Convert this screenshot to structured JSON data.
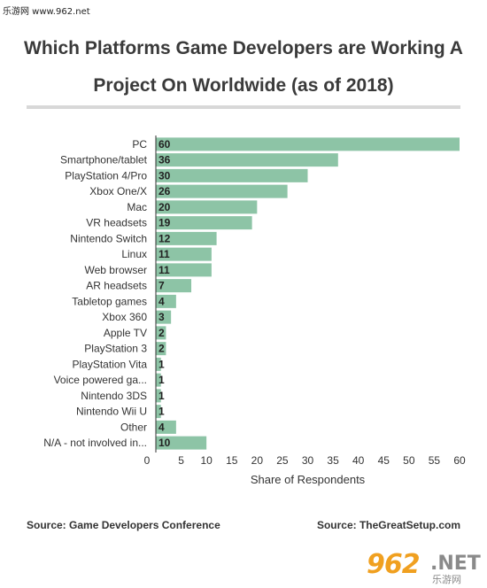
{
  "watermark": "乐游网 www.962.net",
  "title_line1": "Which Platforms Game Developers are Working A",
  "title_line2": "Project On Worldwide (as of 2018)",
  "footer": {
    "left": "Source: Game Developers Conference",
    "right": "Source: TheGreatSetup.com"
  },
  "logo": {
    "main": "962",
    "suffix": ".NET",
    "sub": "乐游网"
  },
  "colors": {
    "bar": "#8dc4a6",
    "axis": "#333333",
    "text": "#333333"
  },
  "chart_data": {
    "type": "bar",
    "orientation": "horizontal",
    "categories": [
      "PC",
      "Smartphone/tablet",
      "PlayStation 4/Pro",
      "Xbox One/X",
      "Mac",
      "VR headsets",
      "Nintendo Switch",
      "Linux",
      "Web browser",
      "AR headsets",
      "Tabletop games",
      "Xbox 360",
      "Apple TV",
      "PlayStation 3",
      "PlayStation Vita",
      "Voice powered ga...",
      "Nintendo 3DS",
      "Nintendo Wii U",
      "Other",
      "N/A - not involved in..."
    ],
    "values": [
      60,
      36,
      30,
      26,
      20,
      19,
      12,
      11,
      11,
      7,
      4,
      3,
      2,
      2,
      1,
      1,
      1,
      1,
      4,
      10
    ],
    "xlabel": "Share of Respondents",
    "xlim": [
      0,
      60
    ],
    "xticks": [
      0,
      5,
      10,
      15,
      20,
      25,
      30,
      35,
      40,
      45,
      50,
      55,
      60
    ],
    "grid": false
  }
}
